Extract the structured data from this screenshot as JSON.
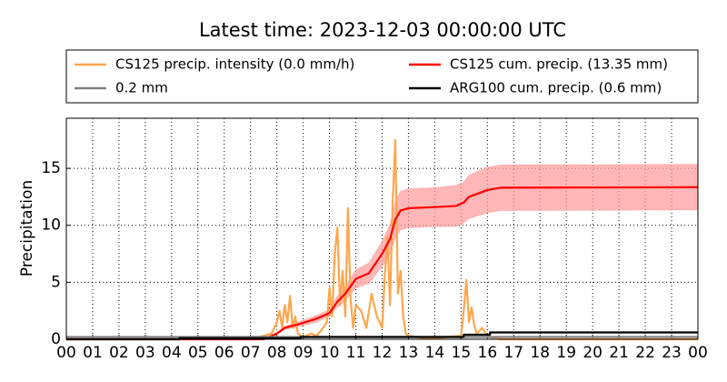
{
  "chart_data": {
    "type": "line",
    "title": "Latest time: 2023-12-03 00:00:00 UTC",
    "y_label": "Precipitation",
    "xlim": [
      0,
      24
    ],
    "ylim": [
      0,
      19.4
    ],
    "xticks": [
      {
        "value": 0,
        "label": "00"
      },
      {
        "value": 1,
        "label": "01"
      },
      {
        "value": 2,
        "label": "02"
      },
      {
        "value": 3,
        "label": "03"
      },
      {
        "value": 4,
        "label": "04"
      },
      {
        "value": 5,
        "label": "05"
      },
      {
        "value": 6,
        "label": "06"
      },
      {
        "value": 7,
        "label": "07"
      },
      {
        "value": 8,
        "label": "08"
      },
      {
        "value": 9,
        "label": "09"
      },
      {
        "value": 10,
        "label": "10"
      },
      {
        "value": 11,
        "label": "11"
      },
      {
        "value": 12,
        "label": "12"
      },
      {
        "value": 13,
        "label": "13"
      },
      {
        "value": 14,
        "label": "14"
      },
      {
        "value": 15,
        "label": "15"
      },
      {
        "value": 16,
        "label": "16"
      },
      {
        "value": 17,
        "label": "17"
      },
      {
        "value": 18,
        "label": "18"
      },
      {
        "value": 19,
        "label": "19"
      },
      {
        "value": 20,
        "label": "20"
      },
      {
        "value": 21,
        "label": "21"
      },
      {
        "value": 22,
        "label": "22"
      },
      {
        "value": 23,
        "label": "23"
      },
      {
        "value": 24,
        "label": "00"
      }
    ],
    "yticks": [
      0,
      5,
      10,
      15
    ],
    "grid": true,
    "series": [
      {
        "name": "CS125 precip. intensity (0.0 mm/h)",
        "color": "#ffa64d",
        "x": [
          0,
          7.0,
          7.5,
          7.8,
          8.0,
          8.1,
          8.2,
          8.3,
          8.4,
          8.5,
          8.6,
          8.7,
          8.8,
          9.0,
          9.3,
          9.5,
          9.7,
          9.9,
          10.0,
          10.1,
          10.2,
          10.3,
          10.4,
          10.5,
          10.6,
          10.7,
          10.8,
          10.9,
          11.0,
          11.2,
          11.4,
          11.6,
          11.8,
          12.0,
          12.1,
          12.2,
          12.3,
          12.4,
          12.5,
          12.6,
          12.7,
          12.8,
          12.9,
          13.0,
          13.3,
          13.6,
          14.0,
          14.5,
          15.0,
          15.1,
          15.2,
          15.3,
          15.4,
          15.5,
          15.6,
          15.8,
          16.0,
          16.2,
          16.5,
          17,
          24
        ],
        "values": [
          0,
          0,
          0.3,
          0.5,
          1.5,
          2.5,
          1.0,
          3.0,
          1.5,
          3.8,
          1.0,
          2.0,
          0.5,
          0.2,
          0.5,
          0.3,
          0.8,
          1.5,
          4.5,
          2.0,
          7.5,
          9.8,
          3.0,
          6.0,
          2.0,
          11.5,
          3.5,
          1.0,
          3.0,
          2.5,
          1.0,
          4.0,
          2.0,
          1.0,
          5.5,
          9.0,
          3.0,
          12.0,
          17.5,
          4.0,
          6.0,
          2.0,
          0.5,
          0.3,
          0.2,
          0.1,
          0.1,
          0.2,
          0.3,
          2.5,
          5.2,
          1.5,
          2.8,
          1.2,
          0.5,
          1.0,
          0.3,
          0.1,
          0,
          0,
          0
        ]
      },
      {
        "name": "CS125 cum. precip. (13.35 mm)",
        "color": "#ff0000",
        "band_color": "#ff9999",
        "x": [
          0,
          7.5,
          8.0,
          8.3,
          8.8,
          9.5,
          10.0,
          10.3,
          10.6,
          11.0,
          11.5,
          12.0,
          12.3,
          12.5,
          12.7,
          13.0,
          14.0,
          14.8,
          15.1,
          15.3,
          16.0,
          16.5,
          24
        ],
        "values": [
          0,
          0,
          0.5,
          1.0,
          1.3,
          1.8,
          2.3,
          3.3,
          4.0,
          5.3,
          5.8,
          7.5,
          8.8,
          10.5,
          11.3,
          11.5,
          11.6,
          11.7,
          12.0,
          12.5,
          13.1,
          13.3,
          13.35
        ],
        "lower": [
          0,
          0,
          0.4,
          0.85,
          1.1,
          1.5,
          2.0,
          2.8,
          3.4,
          4.5,
          4.9,
          6.4,
          7.5,
          8.9,
          9.6,
          9.8,
          9.9,
          9.9,
          10.2,
          10.6,
          11.1,
          11.3,
          11.35
        ],
        "upper": [
          0,
          0,
          0.6,
          1.15,
          1.5,
          2.1,
          2.6,
          3.8,
          4.6,
          6.1,
          6.7,
          8.6,
          10.1,
          12.1,
          13.0,
          13.2,
          13.3,
          13.5,
          13.8,
          14.4,
          15.1,
          15.3,
          15.35
        ]
      },
      {
        "name": "0.2 mm",
        "color": "#808080",
        "x": [
          0,
          24
        ],
        "values": [
          0.2,
          0.2
        ]
      },
      {
        "name": "ARG100 cum. precip. (0.6 mm)",
        "color": "#000000",
        "x": [
          0,
          4.3,
          4.3,
          8.9,
          8.9,
          15.1,
          15.1,
          16.1,
          16.1,
          24
        ],
        "values": [
          0,
          0,
          0.1,
          0.1,
          0.2,
          0.2,
          0.4,
          0.4,
          0.6,
          0.6
        ]
      }
    ]
  }
}
